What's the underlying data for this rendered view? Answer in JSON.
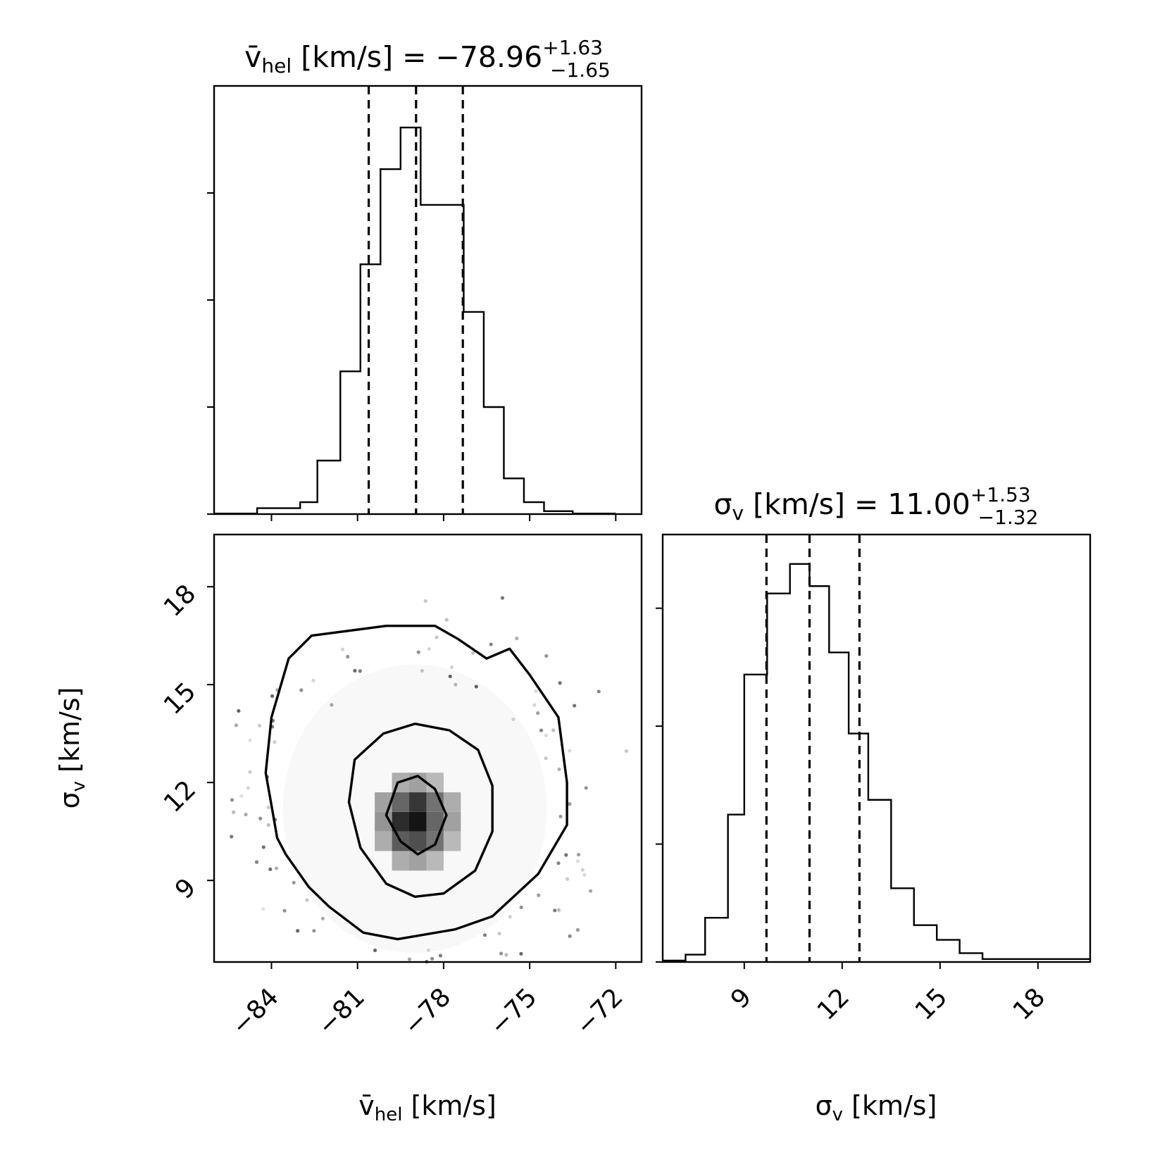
{
  "chart_data": [
    {
      "type": "histogram",
      "title_prefix": "v̄",
      "title_sub": "hel",
      "title_main": " [km/s] = −78.96",
      "title_sup": "+1.63",
      "title_inf": "−1.65",
      "median": -78.96,
      "quantiles": [
        -80.61,
        -78.96,
        -77.33
      ],
      "bin_edges": [
        -88.0,
        -86.5,
        -85.0,
        -83.5,
        -82.0,
        -80.5,
        -79.0,
        -77.5,
        -76.0,
        -74.5,
        -73.0,
        -71.5,
        -70.0
      ],
      "bins": [
        {
          "x0": -86.0,
          "x1": -84.5,
          "value": 0.01
        },
        {
          "x0": -84.5,
          "x1": -83.0,
          "value": 0.1
        },
        {
          "x0": -83.0,
          "x1": -82.4,
          "value": 0.2
        },
        {
          "x0": -82.4,
          "x1": -81.6,
          "value": 0.9
        },
        {
          "x0": -81.6,
          "x1": -80.9,
          "value": 2.4
        },
        {
          "x0": -80.9,
          "x1": -80.2,
          "value": 4.2
        },
        {
          "x0": -80.2,
          "x1": -79.5,
          "value": 5.8
        },
        {
          "x0": -79.5,
          "x1": -78.8,
          "value": 6.5
        },
        {
          "x0": -78.8,
          "x1": -77.3,
          "value": 5.2
        },
        {
          "x0": -77.3,
          "x1": -76.6,
          "value": 3.4
        },
        {
          "x0": -76.6,
          "x1": -75.9,
          "value": 1.8
        },
        {
          "x0": -75.9,
          "x1": -75.2,
          "value": 0.6
        },
        {
          "x0": -75.2,
          "x1": -74.5,
          "value": 0.2
        },
        {
          "x0": -74.5,
          "x1": -73.5,
          "value": 0.05
        },
        {
          "x0": -73.5,
          "x1": -72.0,
          "value": 0.01
        }
      ],
      "xlim": [
        -86.0,
        -71.1
      ],
      "ylim": [
        0,
        7.2
      ]
    },
    {
      "type": "scatter",
      "xlabel_prefix": "v̄",
      "xlabel_sub": "hel",
      "xlabel_main": " [km/s]",
      "ylabel_prefix": "σ",
      "ylabel_sub": "v",
      "ylabel_main": " [km/s]",
      "xticks": [
        "−84",
        "−81",
        "−78",
        "−75",
        "−72"
      ],
      "xtick_values": [
        -84,
        -81,
        -78,
        -75,
        -72
      ],
      "yticks": [
        "9",
        "12",
        "15",
        "18"
      ],
      "ytick_values": [
        9,
        12,
        15,
        18
      ],
      "xlim": [
        -86.0,
        -71.1
      ],
      "ylim": [
        6.5,
        19.6
      ],
      "contours": [
        [
          [
            -80.0,
            11.0
          ],
          [
            -79.5,
            10.2
          ],
          [
            -78.9,
            9.8
          ],
          [
            -78.3,
            10.1
          ],
          [
            -77.9,
            11.0
          ],
          [
            -78.3,
            11.8
          ],
          [
            -78.9,
            12.2
          ],
          [
            -79.6,
            12.0
          ]
        ],
        [
          [
            -81.3,
            11.4
          ],
          [
            -80.9,
            10.0
          ],
          [
            -80.0,
            8.9
          ],
          [
            -79.0,
            8.5
          ],
          [
            -78.0,
            8.6
          ],
          [
            -76.9,
            9.3
          ],
          [
            -76.3,
            10.5
          ],
          [
            -76.3,
            11.9
          ],
          [
            -76.8,
            13.0
          ],
          [
            -77.8,
            13.6
          ],
          [
            -79.0,
            13.8
          ],
          [
            -80.1,
            13.5
          ],
          [
            -81.1,
            12.7
          ]
        ],
        [
          [
            -84.0,
            11.3
          ],
          [
            -83.8,
            10.3
          ],
          [
            -83.5,
            9.8
          ],
          [
            -82.7,
            8.8
          ],
          [
            -82.0,
            8.2
          ],
          [
            -80.8,
            7.4
          ],
          [
            -79.6,
            7.2
          ],
          [
            -77.6,
            7.5
          ],
          [
            -76.3,
            7.9
          ],
          [
            -74.7,
            9.2
          ],
          [
            -73.7,
            10.7
          ],
          [
            -73.7,
            12.0
          ],
          [
            -74.0,
            14.0
          ],
          [
            -75.0,
            15.3
          ],
          [
            -75.7,
            16.1
          ],
          [
            -76.5,
            15.8
          ],
          [
            -77.5,
            16.4
          ],
          [
            -78.3,
            16.8
          ],
          [
            -80.0,
            16.8
          ],
          [
            -82.6,
            16.5
          ],
          [
            -83.4,
            15.8
          ],
          [
            -84.0,
            14.0
          ],
          [
            -84.2,
            12.3
          ]
        ]
      ],
      "density_cells": [
        {
          "x": -79.5,
          "y": 10.2,
          "level": 0.7
        },
        {
          "x": -78.9,
          "y": 10.2,
          "level": 0.75
        },
        {
          "x": -78.3,
          "y": 10.2,
          "level": 0.6
        },
        {
          "x": -79.5,
          "y": 10.8,
          "level": 0.9
        },
        {
          "x": -78.9,
          "y": 10.8,
          "level": 1.0
        },
        {
          "x": -78.3,
          "y": 10.8,
          "level": 0.65
        },
        {
          "x": -79.5,
          "y": 11.4,
          "level": 0.65
        },
        {
          "x": -78.9,
          "y": 11.4,
          "level": 0.85
        },
        {
          "x": -78.3,
          "y": 11.4,
          "level": 0.6
        },
        {
          "x": -80.1,
          "y": 10.8,
          "level": 0.45
        },
        {
          "x": -77.7,
          "y": 10.8,
          "level": 0.4
        },
        {
          "x": -80.1,
          "y": 11.4,
          "level": 0.4
        },
        {
          "x": -77.7,
          "y": 11.4,
          "level": 0.35
        },
        {
          "x": -80.1,
          "y": 10.2,
          "level": 0.35
        },
        {
          "x": -77.7,
          "y": 10.2,
          "level": 0.3
        },
        {
          "x": -79.5,
          "y": 9.6,
          "level": 0.35
        },
        {
          "x": -78.9,
          "y": 9.6,
          "level": 0.4
        },
        {
          "x": -78.3,
          "y": 9.6,
          "level": 0.3
        },
        {
          "x": -79.5,
          "y": 12.0,
          "level": 0.35
        },
        {
          "x": -78.9,
          "y": 12.0,
          "level": 0.4
        },
        {
          "x": -78.3,
          "y": 12.0,
          "level": 0.3
        }
      ]
    },
    {
      "type": "histogram",
      "title_prefix": "σ",
      "title_sub": "v",
      "title_main": " [km/s] = 11.00",
      "title_sup": "+1.53",
      "title_inf": "−1.32",
      "median": 11.0,
      "quantiles": [
        9.68,
        11.0,
        12.53
      ],
      "xticks": [
        "9",
        "12",
        "15",
        "18"
      ],
      "xtick_values": [
        9,
        12,
        15,
        18
      ],
      "bins": [
        {
          "x0": 6.5,
          "x1": 7.2,
          "value": 0.02
        },
        {
          "x0": 7.2,
          "x1": 7.8,
          "value": 0.1
        },
        {
          "x0": 7.8,
          "x1": 8.5,
          "value": 0.6
        },
        {
          "x0": 8.5,
          "x1": 9.0,
          "value": 2.0
        },
        {
          "x0": 9.0,
          "x1": 9.7,
          "value": 3.9
        },
        {
          "x0": 9.7,
          "x1": 10.4,
          "value": 5.0
        },
        {
          "x0": 10.4,
          "x1": 11.0,
          "value": 5.4
        },
        {
          "x0": 11.0,
          "x1": 11.6,
          "value": 5.1
        },
        {
          "x0": 11.6,
          "x1": 12.2,
          "value": 4.2
        },
        {
          "x0": 12.2,
          "x1": 12.8,
          "value": 3.1
        },
        {
          "x0": 12.8,
          "x1": 13.5,
          "value": 2.2
        },
        {
          "x0": 13.5,
          "x1": 14.2,
          "value": 1.0
        },
        {
          "x0": 14.2,
          "x1": 14.9,
          "value": 0.5
        },
        {
          "x0": 14.9,
          "x1": 15.6,
          "value": 0.3
        },
        {
          "x0": 15.6,
          "x1": 16.3,
          "value": 0.12
        },
        {
          "x0": 16.3,
          "x1": 19.6,
          "value": 0.04
        }
      ],
      "xlim": [
        6.5,
        19.6
      ],
      "ylim": [
        0,
        5.8
      ]
    }
  ]
}
